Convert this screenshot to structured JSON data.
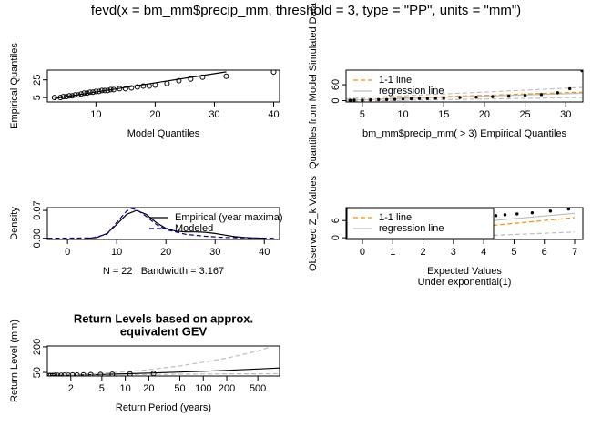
{
  "title": "fevd(x = bm_mm$precip_mm, threshold = 3, type = \"PP\", units = \"mm\")",
  "chart_data": [
    {
      "type": "scatter",
      "xlabel": [
        "Model Quantiles"
      ],
      "ylabel": "Empirical Quantiles",
      "xlim": [
        1.8,
        41
      ],
      "ylim": [
        0,
        36
      ],
      "xticks": [
        10,
        20,
        30,
        40
      ],
      "yticks": [
        5,
        25
      ],
      "series": [
        {
          "kind": "points",
          "color": "#000000",
          "x": [
            3,
            4,
            4.5,
            5,
            5.5,
            6,
            6.5,
            7,
            7.5,
            8,
            8.5,
            9,
            9.5,
            10,
            10.5,
            11,
            11.5,
            12,
            12.5,
            13,
            14,
            15,
            16,
            17,
            18,
            19,
            20,
            22,
            24,
            26,
            28,
            32,
            40
          ],
          "values": [
            5,
            5,
            6,
            6,
            7,
            7,
            8,
            8,
            9,
            10,
            10,
            11,
            11,
            12,
            12,
            13,
            13,
            13,
            14,
            14,
            15,
            15,
            16,
            17,
            18,
            18,
            19,
            21,
            24,
            26,
            28,
            29,
            34
          ]
        },
        {
          "kind": "line",
          "color": "#000000",
          "x": [
            3,
            32
          ],
          "values": [
            4,
            34
          ]
        }
      ]
    },
    {
      "type": "scatter",
      "xlabel": [
        "bm_mm$precip_mm( > 3) Empirical Quantiles"
      ],
      "ylabel": "Quantiles from Model Simulated Data",
      "xlim": [
        3,
        32.1
      ],
      "ylim": [
        -5,
        115
      ],
      "xticks": [
        5,
        10,
        15,
        20,
        25,
        30
      ],
      "yticks": [
        0,
        60
      ],
      "legend": "topleft",
      "series": [
        {
          "kind": "line",
          "name": "1-1 line",
          "color": "#ff8c00",
          "dash": true,
          "x": [
            3,
            32
          ],
          "values": [
            3,
            32
          ]
        },
        {
          "kind": "line",
          "name": "regression line",
          "color": "#bebebe",
          "x": [
            3,
            32
          ],
          "values": [
            2,
            28
          ]
        },
        {
          "kind": "line",
          "color": "#bebebe",
          "dash": true,
          "x": [
            3,
            32
          ],
          "values": [
            8,
            50
          ]
        },
        {
          "kind": "line",
          "color": "#bebebe",
          "dash": true,
          "x": [
            3,
            32
          ],
          "values": [
            -2,
            12
          ]
        },
        {
          "kind": "dots",
          "color": "#000000",
          "x": [
            3.5,
            4,
            5,
            6,
            7,
            8,
            9,
            10,
            11,
            12,
            13,
            14,
            15,
            17,
            19,
            21,
            23,
            25,
            27,
            29,
            30.5,
            32
          ],
          "values": [
            1,
            2,
            2,
            3,
            4,
            4,
            5,
            6,
            7,
            8,
            8,
            9,
            10,
            12,
            13,
            15,
            17,
            20,
            23,
            30,
            45,
            113
          ]
        }
      ]
    },
    {
      "type": "line",
      "xlabel": [
        "N = 22   Bandwidth = 3.167"
      ],
      "ylabel": "Density",
      "xlim": [
        -4.1,
        43.1
      ],
      "ylim": [
        -0.003,
        0.077
      ],
      "xticks": [
        0,
        10,
        20,
        30,
        40
      ],
      "yticks": [
        {
          "value": 0,
          "label": "0.00"
        },
        0.07
      ],
      "legend": "topright",
      "series": [
        {
          "kind": "line",
          "name": "Empirical (year maxima)",
          "color": "#000000",
          "x": [
            4,
            6,
            8,
            10,
            12,
            14,
            16,
            18,
            20,
            22,
            24,
            26,
            28,
            30,
            32,
            34,
            36,
            38,
            40
          ],
          "values": [
            0,
            0.002,
            0.012,
            0.035,
            0.06,
            0.07,
            0.06,
            0.04,
            0.025,
            0.018,
            0.016,
            0.016,
            0.015,
            0.012,
            0.008,
            0.004,
            0.002,
            0.001,
            0
          ]
        },
        {
          "kind": "line",
          "name": "Modeled",
          "color": "#00008b",
          "dash": true,
          "x": [
            -4,
            5,
            8,
            10,
            12,
            13,
            14,
            16,
            18,
            20,
            24,
            28,
            32,
            36,
            42
          ],
          "values": [
            0,
            0.001,
            0.01,
            0.04,
            0.068,
            0.075,
            0.072,
            0.055,
            0.035,
            0.022,
            0.01,
            0.005,
            0.002,
            0.001,
            0
          ]
        }
      ]
    },
    {
      "type": "scatter",
      "xlabel": [
        "Expected Values",
        "Under exponential(1)"
      ],
      "ylabel": "Observed Z_k Values",
      "xlim": [
        -0.54,
        7.27
      ],
      "ylim": [
        -0.6,
        10.5
      ],
      "xticks": [
        0,
        1,
        2,
        3,
        4,
        5,
        6,
        7
      ],
      "yticks": [
        0,
        6
      ],
      "legend": "topleft",
      "legend_box": true,
      "series": [
        {
          "kind": "line",
          "name": "1-1 line",
          "color": "#ff8c00",
          "dash": true,
          "x": [
            0,
            7
          ],
          "values": [
            0,
            7
          ]
        },
        {
          "kind": "line",
          "name": "regression line",
          "color": "#bebebe",
          "x": [
            0,
            7
          ],
          "values": [
            2,
            8.5
          ]
        },
        {
          "kind": "line",
          "color": "#bebebe",
          "dash": true,
          "x": [
            0,
            7
          ],
          "values": [
            -1,
            2
          ]
        },
        {
          "kind": "dots",
          "color": "#000000",
          "x": [
            4.2,
            4.4,
            4.7,
            5.1,
            5.6,
            6.2,
            6.8
          ],
          "values": [
            7.5,
            7.7,
            8,
            8.3,
            8.7,
            9.3,
            10
          ]
        }
      ]
    },
    {
      "type": "line",
      "title_lines": [
        "Return Levels based on approx.",
        "equivalent GEV"
      ],
      "xlabel": [
        "Return Period (years)"
      ],
      "ylabel": "Return Level (mm)",
      "xlog": true,
      "xlim": [
        1,
        950
      ],
      "ylim": [
        29,
        205
      ],
      "xticks": [
        2,
        5,
        10,
        20,
        50,
        100,
        200,
        500
      ],
      "yticks": [
        50,
        200
      ],
      "series": [
        {
          "kind": "line",
          "color": "#000000",
          "x": [
            1,
            2,
            5,
            10,
            20,
            50,
            100,
            200,
            500,
            950
          ],
          "values": [
            30,
            34,
            38,
            42,
            46,
            52,
            57,
            62,
            70,
            76
          ]
        },
        {
          "kind": "line",
          "color": "#bebebe",
          "dash": true,
          "x": [
            1,
            2,
            5,
            10,
            20,
            50,
            100,
            200,
            500,
            700
          ],
          "values": [
            30,
            36,
            44,
            54,
            66,
            88,
            110,
            134,
            175,
            198
          ]
        },
        {
          "kind": "line",
          "color": "#bebebe",
          "dash": true,
          "x": [
            1,
            2,
            5,
            10,
            20,
            50,
            100,
            200,
            500,
            950
          ],
          "values": [
            30,
            32,
            34,
            36,
            38,
            40,
            41,
            42,
            42,
            43
          ]
        },
        {
          "kind": "points",
          "color": "#000000",
          "x": [
            1.05,
            1.1,
            1.17,
            1.25,
            1.35,
            1.5,
            1.65,
            1.85,
            2.1,
            2.4,
            2.9,
            3.6,
            4.8,
            6.8,
            11.5,
            23
          ],
          "values": [
            31,
            32,
            32,
            33,
            33,
            33,
            34,
            34,
            35,
            35,
            36,
            37,
            38,
            39,
            41,
            44
          ]
        }
      ]
    }
  ]
}
